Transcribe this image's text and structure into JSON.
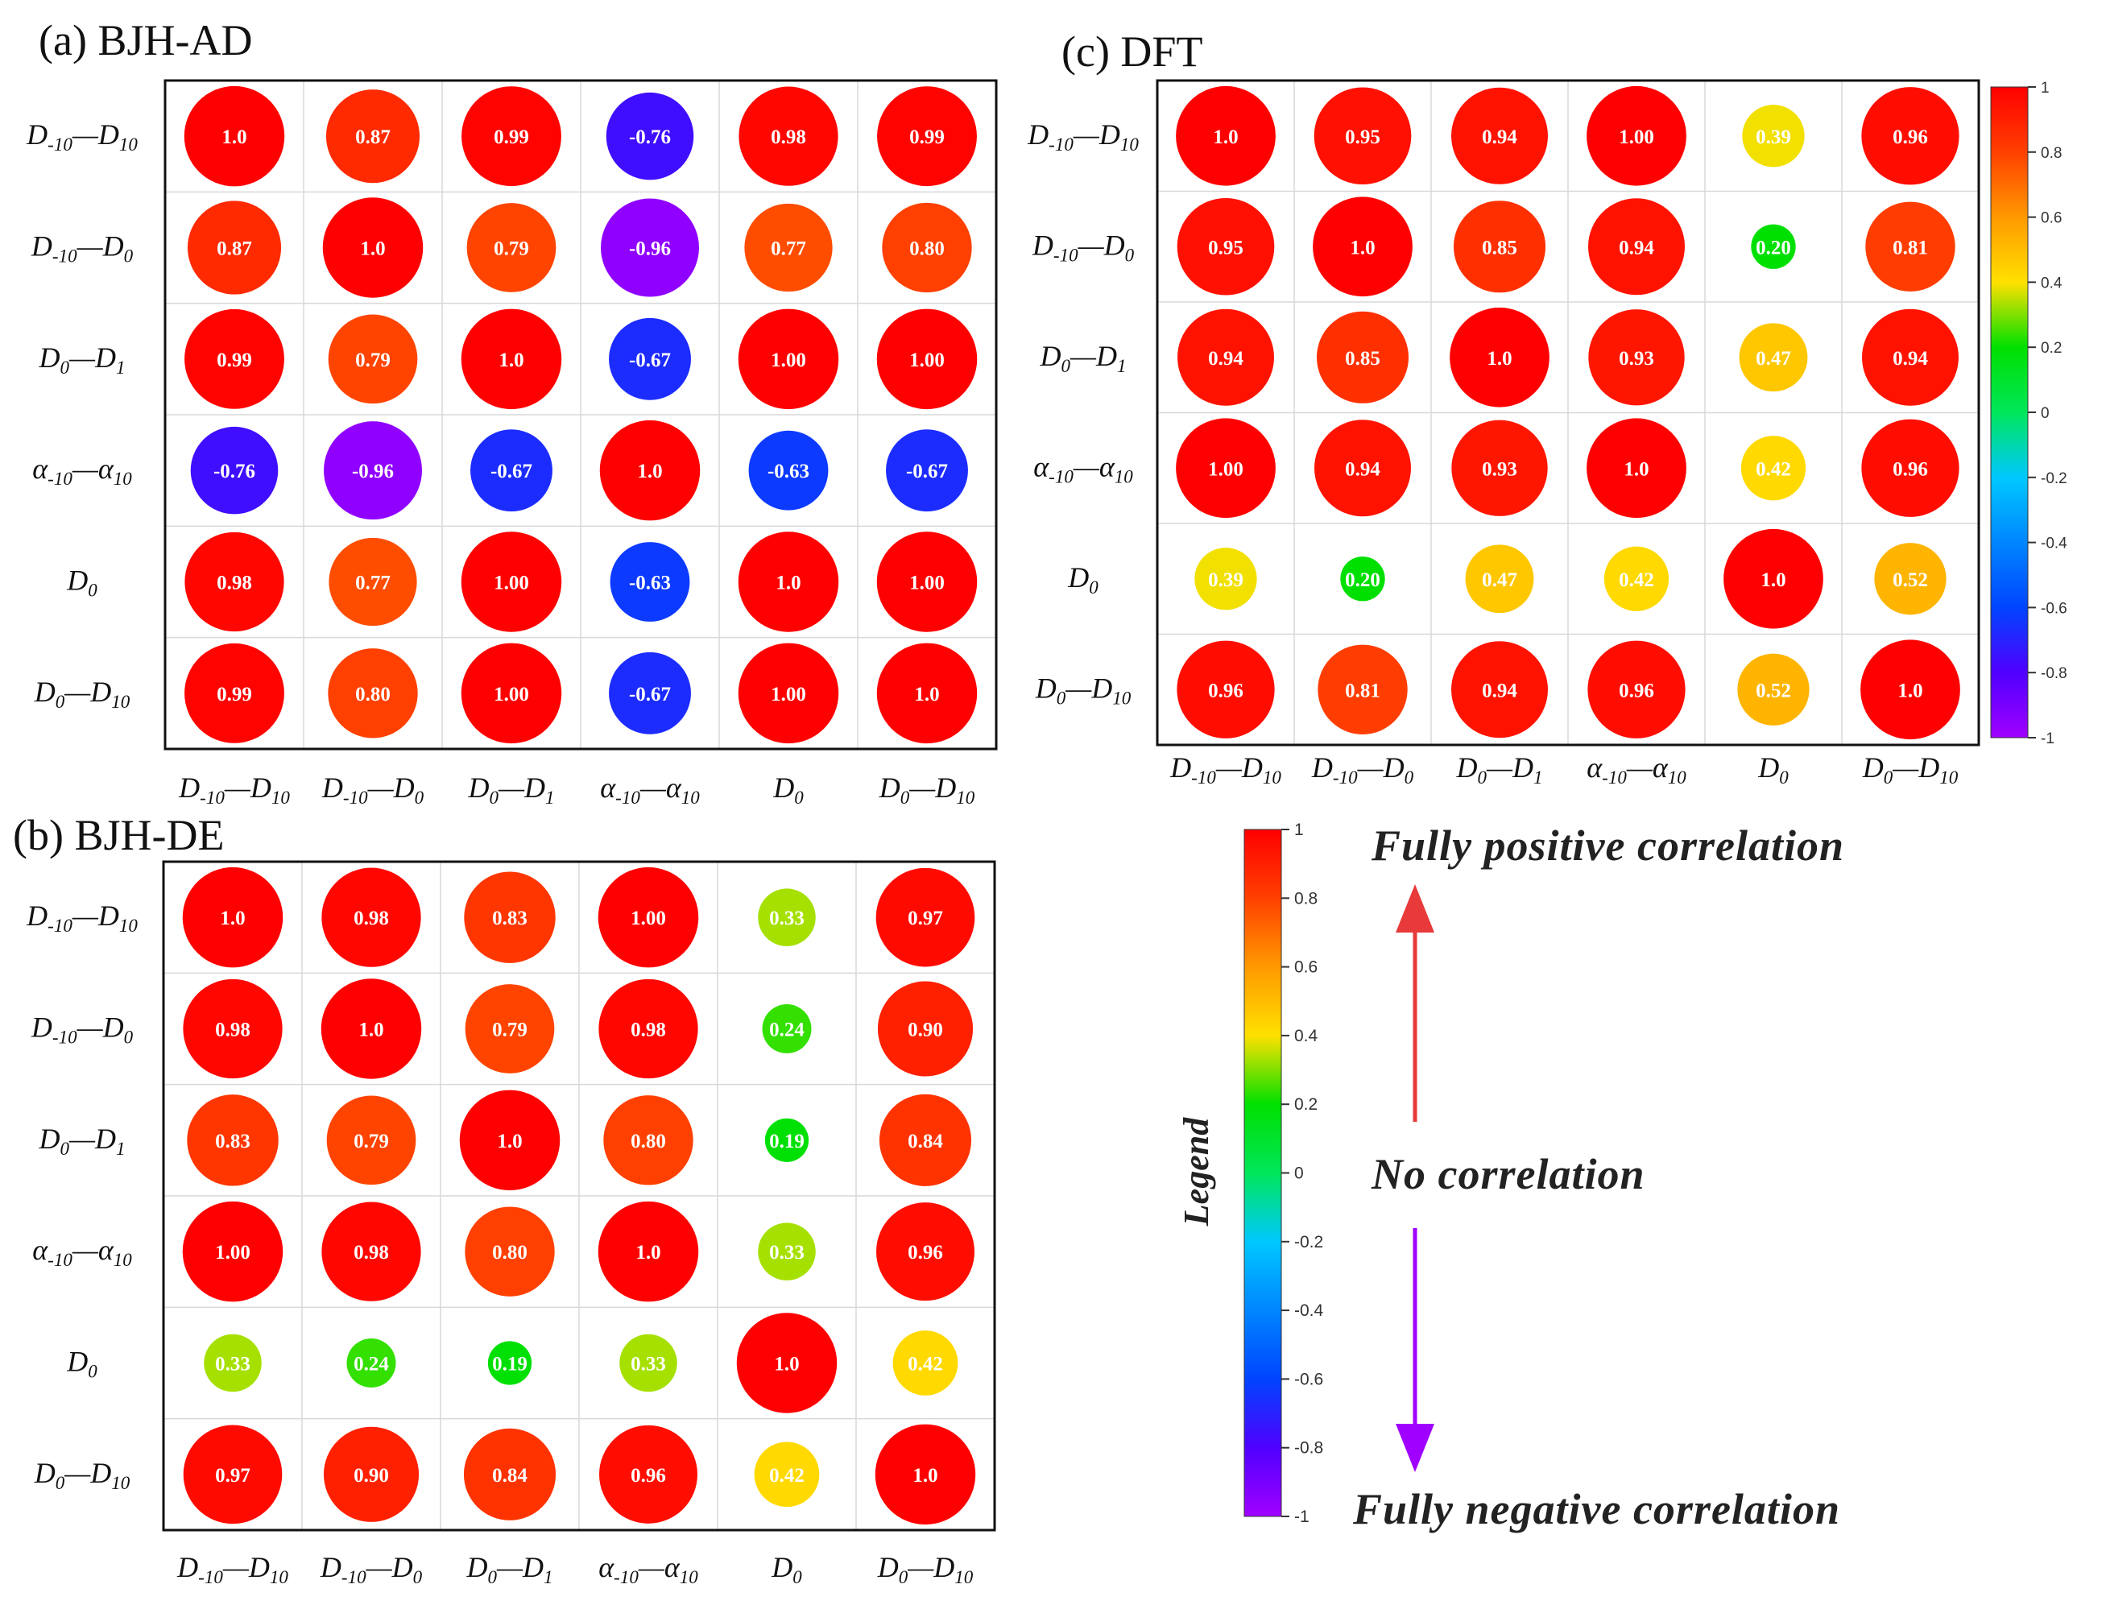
{
  "colors": {
    "cmap": [
      "#a000ff",
      "#5000ff",
      "#0044ff",
      "#00c8ff",
      "#00e65a",
      "#00e000",
      "#7fe000",
      "#ffe000",
      "#ff9900",
      "#ff4000",
      "#ff0000"
    ],
    "grid": "#d8d8d8",
    "frame": "#111111",
    "arrow_up": "#e83a3a",
    "arrow_down": "#a000ff"
  },
  "chart_data": [
    {
      "type": "heatmap",
      "title": "(a) BJH-AD",
      "row_labels": [
        {
          "main": [
            "D"
          ],
          "parts": [
            [
              "D",
              "-10"
            ],
            [
              "D",
              "10"
            ]
          ]
        },
        {
          "parts": [
            [
              "D",
              "-10"
            ],
            [
              "D",
              "0"
            ]
          ]
        },
        {
          "parts": [
            [
              "D",
              "0"
            ],
            [
              "D",
              "1"
            ]
          ]
        },
        {
          "parts": [
            [
              "α",
              "-10"
            ],
            [
              "α",
              "10"
            ]
          ]
        },
        {
          "parts": [
            [
              "D",
              "0"
            ]
          ]
        },
        {
          "parts": [
            [
              "D",
              "0"
            ],
            [
              "D",
              "10"
            ]
          ]
        }
      ],
      "col_labels": [
        {
          "parts": [
            [
              "D",
              "-10"
            ],
            [
              "D",
              "10"
            ]
          ]
        },
        {
          "parts": [
            [
              "D",
              "-10"
            ],
            [
              "D",
              "0"
            ]
          ]
        },
        {
          "parts": [
            [
              "D",
              "0"
            ],
            [
              "D",
              "1"
            ]
          ]
        },
        {
          "parts": [
            [
              "α",
              "-10"
            ],
            [
              "α",
              "10"
            ]
          ]
        },
        {
          "parts": [
            [
              "D",
              "0"
            ]
          ]
        },
        {
          "parts": [
            [
              "D",
              "0"
            ],
            [
              "D",
              "10"
            ]
          ]
        }
      ],
      "values": [
        [
          1.0,
          0.87,
          0.99,
          -0.76,
          0.98,
          0.99
        ],
        [
          0.87,
          1.0,
          0.79,
          -0.96,
          0.77,
          0.8
        ],
        [
          0.99,
          0.79,
          1.0,
          -0.67,
          1.0,
          1.0
        ],
        [
          -0.76,
          -0.96,
          -0.67,
          1.0,
          -0.63,
          -0.67
        ],
        [
          0.98,
          0.77,
          1.0,
          -0.63,
          1.0,
          1.0
        ],
        [
          0.99,
          0.8,
          1.0,
          -0.67,
          1.0,
          1.0
        ]
      ],
      "labels": [
        [
          "1.0",
          "0.87",
          "0.99",
          "-0.76",
          "0.98",
          "0.99"
        ],
        [
          "0.87",
          "1.0",
          "0.79",
          "-0.96",
          "0.77",
          "0.80"
        ],
        [
          "0.99",
          "0.79",
          "1.0",
          "-0.67",
          "1.00",
          "1.00"
        ],
        [
          "-0.76",
          "-0.96",
          "-0.67",
          "1.0",
          "-0.63",
          "-0.67"
        ],
        [
          "0.98",
          "0.77",
          "1.00",
          "-0.63",
          "1.0",
          "1.00"
        ],
        [
          "0.99",
          "0.80",
          "1.00",
          "-0.67",
          "1.00",
          "1.0"
        ]
      ],
      "colorbar": null
    },
    {
      "type": "heatmap",
      "title": "(b) BJH-DE",
      "row_labels": [
        {
          "parts": [
            [
              "D",
              "-10"
            ],
            [
              "D",
              "10"
            ]
          ]
        },
        {
          "parts": [
            [
              "D",
              "-10"
            ],
            [
              "D",
              "0"
            ]
          ]
        },
        {
          "parts": [
            [
              "D",
              "0"
            ],
            [
              "D",
              "1"
            ]
          ]
        },
        {
          "parts": [
            [
              "α",
              "-10"
            ],
            [
              "α",
              "10"
            ]
          ]
        },
        {
          "parts": [
            [
              "D",
              "0"
            ]
          ]
        },
        {
          "parts": [
            [
              "D",
              "0"
            ],
            [
              "D",
              "10"
            ]
          ]
        }
      ],
      "col_labels": [
        {
          "parts": [
            [
              "D",
              "-10"
            ],
            [
              "D",
              "10"
            ]
          ]
        },
        {
          "parts": [
            [
              "D",
              "-10"
            ],
            [
              "D",
              "0"
            ]
          ]
        },
        {
          "parts": [
            [
              "D",
              "0"
            ],
            [
              "D",
              "1"
            ]
          ]
        },
        {
          "parts": [
            [
              "α",
              "-10"
            ],
            [
              "α",
              "10"
            ]
          ]
        },
        {
          "parts": [
            [
              "D",
              "0"
            ]
          ]
        },
        {
          "parts": [
            [
              "D",
              "0"
            ],
            [
              "D",
              "10"
            ]
          ]
        }
      ],
      "values": [
        [
          1.0,
          0.98,
          0.83,
          1.0,
          0.33,
          0.97
        ],
        [
          0.98,
          1.0,
          0.79,
          0.98,
          0.24,
          0.9
        ],
        [
          0.83,
          0.79,
          1.0,
          0.8,
          0.19,
          0.84
        ],
        [
          1.0,
          0.98,
          0.8,
          1.0,
          0.33,
          0.96
        ],
        [
          0.33,
          0.24,
          0.19,
          0.33,
          1.0,
          0.42
        ],
        [
          0.97,
          0.9,
          0.84,
          0.96,
          0.42,
          1.0
        ]
      ],
      "labels": [
        [
          "1.0",
          "0.98",
          "0.83",
          "1.00",
          "0.33",
          "0.97"
        ],
        [
          "0.98",
          "1.0",
          "0.79",
          "0.98",
          "0.24",
          "0.90"
        ],
        [
          "0.83",
          "0.79",
          "1.0",
          "0.80",
          "0.19",
          "0.84"
        ],
        [
          "1.00",
          "0.98",
          "0.80",
          "1.0",
          "0.33",
          "0.96"
        ],
        [
          "0.33",
          "0.24",
          "0.19",
          "0.33",
          "1.0",
          "0.42"
        ],
        [
          "0.97",
          "0.90",
          "0.84",
          "0.96",
          "0.42",
          "1.0"
        ]
      ],
      "colorbar": null
    },
    {
      "type": "heatmap",
      "title": "(c) DFT",
      "row_labels": [
        {
          "parts": [
            [
              "D",
              "-10"
            ],
            [
              "D",
              "10"
            ]
          ]
        },
        {
          "parts": [
            [
              "D",
              "-10"
            ],
            [
              "D",
              "0"
            ]
          ]
        },
        {
          "parts": [
            [
              "D",
              "0"
            ],
            [
              "D",
              "1"
            ]
          ]
        },
        {
          "parts": [
            [
              "α",
              "-10"
            ],
            [
              "α",
              "10"
            ]
          ]
        },
        {
          "parts": [
            [
              "D",
              "0"
            ]
          ]
        },
        {
          "parts": [
            [
              "D",
              "0"
            ],
            [
              "D",
              "10"
            ]
          ]
        }
      ],
      "col_labels": [
        {
          "parts": [
            [
              "D",
              "-10"
            ],
            [
              "D",
              "10"
            ]
          ]
        },
        {
          "parts": [
            [
              "D",
              "-10"
            ],
            [
              "D",
              "0"
            ]
          ]
        },
        {
          "parts": [
            [
              "D",
              "0"
            ],
            [
              "D",
              "1"
            ]
          ]
        },
        {
          "parts": [
            [
              "α",
              "-10"
            ],
            [
              "α",
              "10"
            ]
          ]
        },
        {
          "parts": [
            [
              "D",
              "0"
            ]
          ]
        },
        {
          "parts": [
            [
              "D",
              "0"
            ],
            [
              "D",
              "10"
            ]
          ]
        }
      ],
      "values": [
        [
          1.0,
          0.95,
          0.94,
          1.0,
          0.39,
          0.96
        ],
        [
          0.95,
          1.0,
          0.85,
          0.94,
          0.2,
          0.81
        ],
        [
          0.94,
          0.85,
          1.0,
          0.93,
          0.47,
          0.94
        ],
        [
          1.0,
          0.94,
          0.93,
          1.0,
          0.42,
          0.96
        ],
        [
          0.39,
          0.2,
          0.47,
          0.42,
          1.0,
          0.52
        ],
        [
          0.96,
          0.81,
          0.94,
          0.96,
          0.52,
          1.0
        ]
      ],
      "labels": [
        [
          "1.0",
          "0.95",
          "0.94",
          "1.00",
          "0.39",
          "0.96"
        ],
        [
          "0.95",
          "1.0",
          "0.85",
          "0.94",
          "0.20",
          "0.81"
        ],
        [
          "0.94",
          "0.85",
          "1.0",
          "0.93",
          "0.47",
          "0.94"
        ],
        [
          "1.00",
          "0.94",
          "0.93",
          "1.0",
          "0.42",
          "0.96"
        ],
        [
          "0.39",
          "0.20",
          "0.47",
          "0.42",
          "1.0",
          "0.52"
        ],
        [
          "0.96",
          "0.81",
          "0.94",
          "0.96",
          "0.52",
          "1.0"
        ]
      ],
      "colorbar": {
        "range": [
          -1,
          1
        ],
        "ticks": [
          "1",
          "0.8",
          "0.6",
          "0.4",
          "0.2",
          "0",
          "-0.2",
          "-0.4",
          "-0.6",
          "-0.8",
          "-1"
        ]
      }
    }
  ],
  "legend": {
    "title": "Legend",
    "colorbar_range": [
      -1,
      1
    ],
    "ticks": [
      "1",
      "0.8",
      "0.6",
      "0.4",
      "0.2",
      "0",
      "-0.2",
      "-0.4",
      "-0.6",
      "-0.8",
      "-1"
    ],
    "positive_text": "Fully positive correlation",
    "none_text": "No correlation",
    "negative_text": "Fully negative correlation"
  }
}
